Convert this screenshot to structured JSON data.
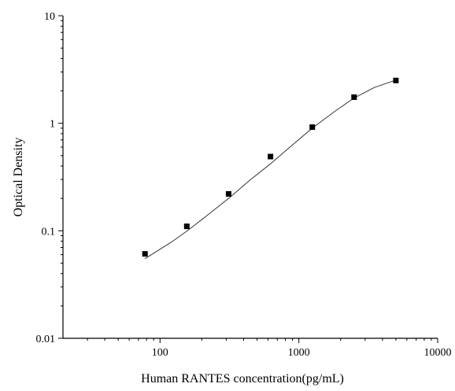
{
  "chart_data": {
    "type": "scatter",
    "title": "",
    "xlabel": "Human RANTES concentration(pg/mL)",
    "ylabel": "Optical Density",
    "xscale": "log",
    "yscale": "log",
    "xlim": [
      20,
      10000
    ],
    "ylim": [
      0.01,
      10
    ],
    "xticks": [
      100,
      1000,
      10000
    ],
    "xtick_labels": [
      "100",
      "1000",
      "10000"
    ],
    "yticks": [
      0.01,
      0.1,
      1,
      10
    ],
    "ytick_labels": [
      "0.01",
      "0.1",
      "1",
      "10"
    ],
    "grid": false,
    "legend": "none",
    "series": [
      {
        "marker": "square",
        "x": [
          78,
          156,
          312,
          625,
          1250,
          2500,
          5000
        ],
        "y": [
          0.061,
          0.11,
          0.22,
          0.49,
          0.92,
          1.75,
          2.5
        ]
      }
    ],
    "fit_curve": {
      "x": [
        78,
        120,
        156,
        220,
        312,
        450,
        625,
        900,
        1250,
        1800,
        2500,
        3500,
        5000
      ],
      "y": [
        0.055,
        0.078,
        0.099,
        0.14,
        0.2,
        0.3,
        0.42,
        0.63,
        0.9,
        1.28,
        1.72,
        2.15,
        2.52
      ]
    },
    "colors": {
      "marker": "#000000",
      "curve": "#333333",
      "axis": "#000000"
    }
  }
}
